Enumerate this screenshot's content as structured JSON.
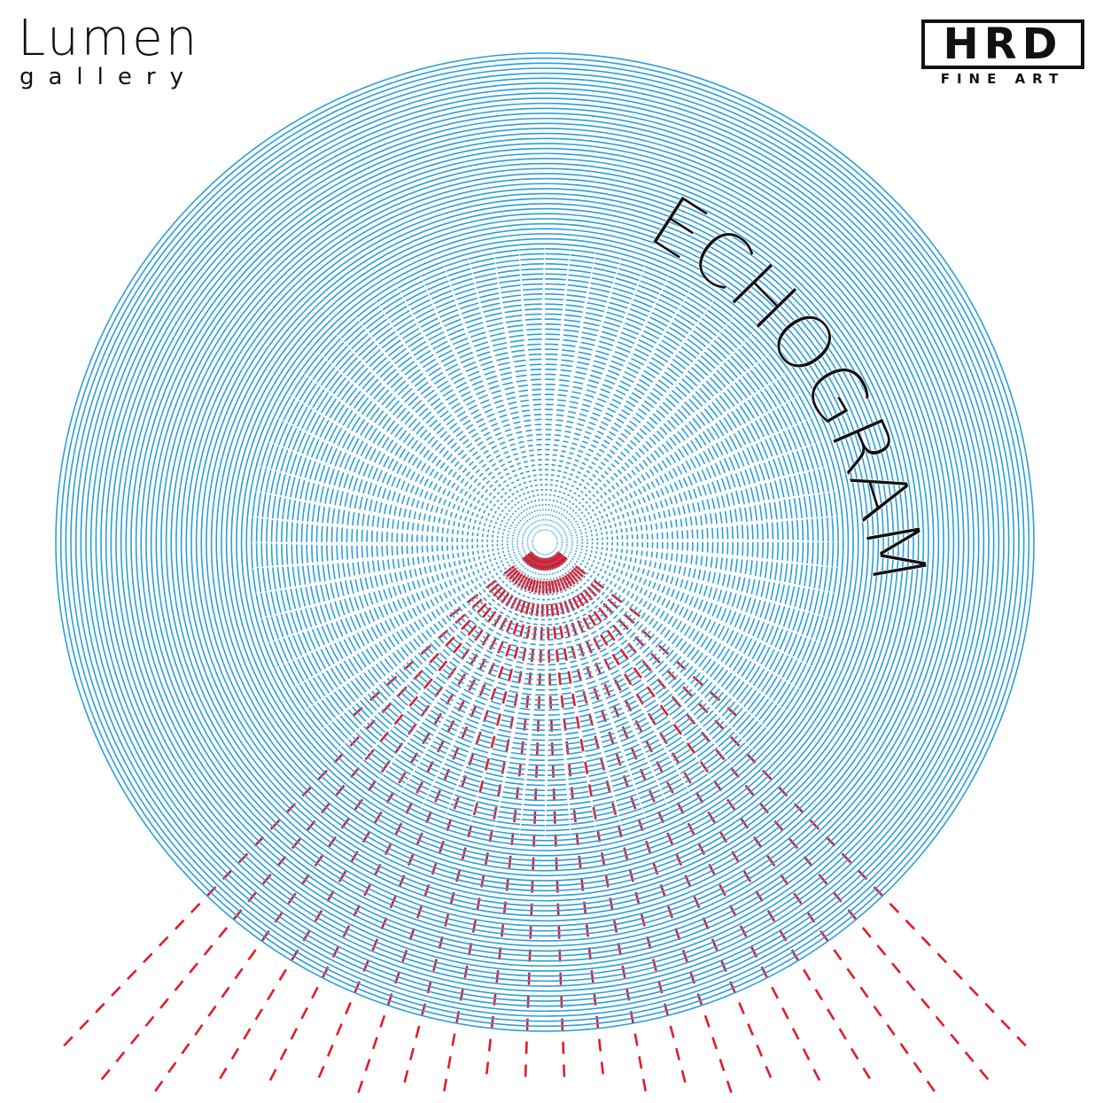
{
  "poster": {
    "title": "ECHOGRAM",
    "left_logo": {
      "name": "Lumen",
      "subtitle": "gallery"
    },
    "right_logo": {
      "letters": "HRD",
      "subtitle": "FINE ART"
    },
    "colors": {
      "background": "#ffffff",
      "circle_lines": "#2a9fd8",
      "red_lines": "#e01c2a",
      "text": "#111111"
    }
  }
}
